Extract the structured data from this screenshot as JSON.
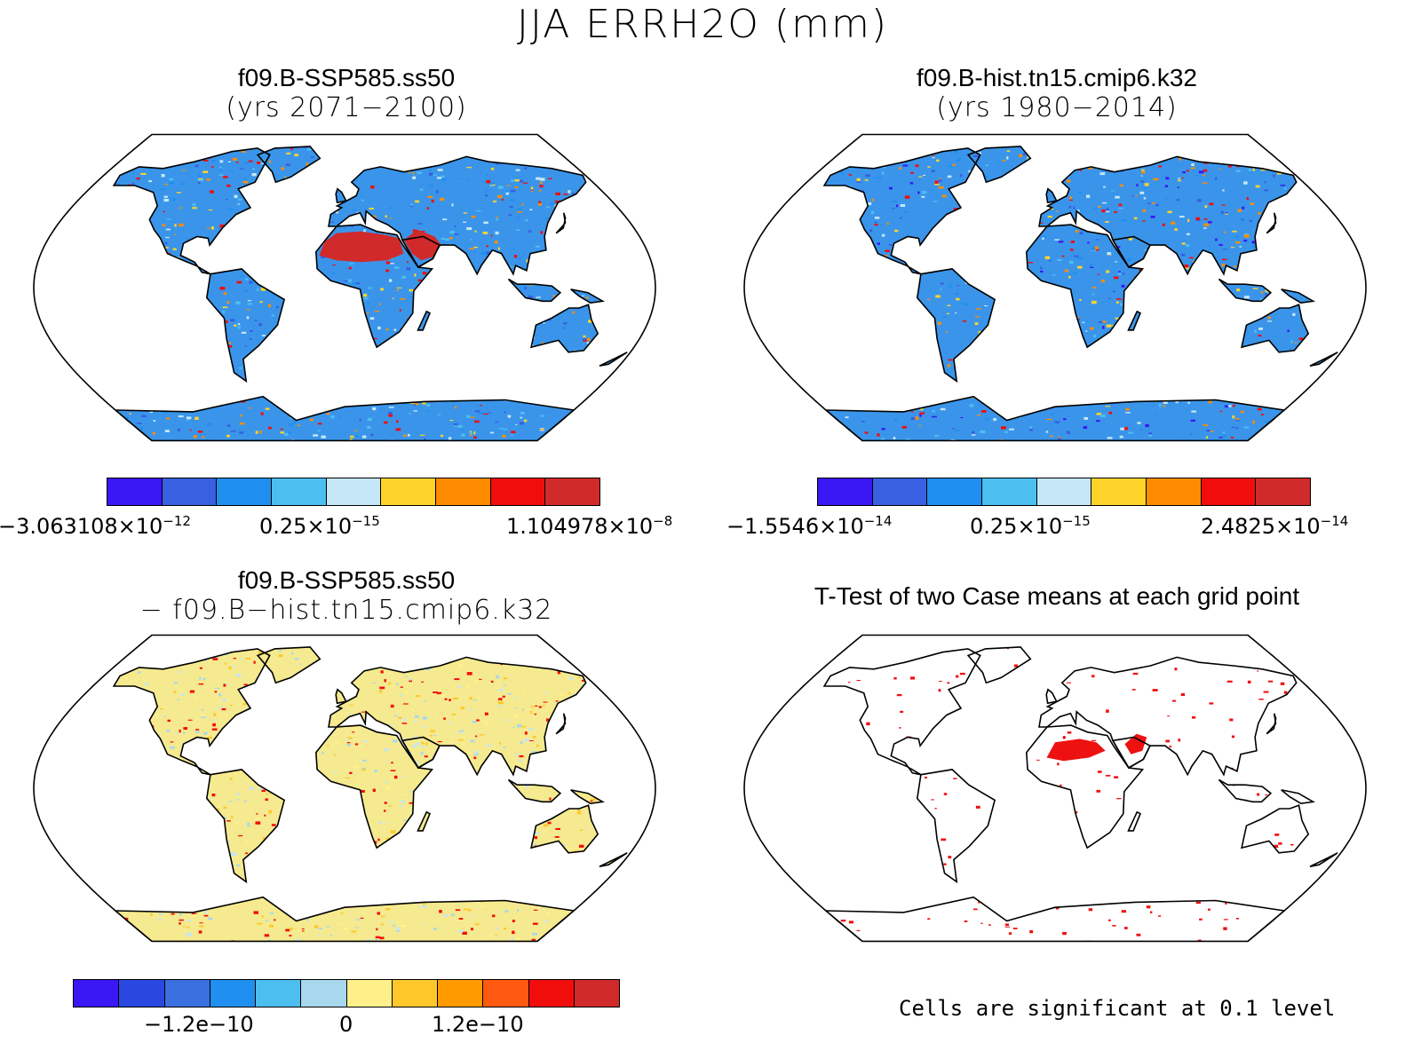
{
  "figure": {
    "title": "JJA ERRH2O (mm)"
  },
  "panels": [
    {
      "id": "top-left",
      "title": "f09.B-SSP585.ss50",
      "subtitle": "(yrs 2071−2100)",
      "colorbar": {
        "colors": [
          "#3a17f5",
          "#3860e0",
          "#1f8ff0",
          "#4cbef0",
          "#c5e6f7",
          "#ffd42a",
          "#ff8c00",
          "#f20d0d",
          "#d12a2a"
        ],
        "labels": [
          {
            "mantissa": "−3.063108×10",
            "exp": "−12"
          },
          {
            "mantissa": "0.25×10",
            "exp": "−15"
          },
          {
            "mantissa": "1.104978×10",
            "exp": "−8"
          }
        ]
      }
    },
    {
      "id": "top-right",
      "title": "f09.B-hist.tn15.cmip6.k32",
      "subtitle": "(yrs 1980−2014)",
      "colorbar": {
        "colors": [
          "#3a17f5",
          "#3860e0",
          "#1f8ff0",
          "#4cbef0",
          "#c5e6f7",
          "#ffd42a",
          "#ff8c00",
          "#f20d0d",
          "#d12a2a"
        ],
        "labels": [
          {
            "mantissa": "−1.5546×10",
            "exp": "−14"
          },
          {
            "mantissa": "0.25×10",
            "exp": "−15"
          },
          {
            "mantissa": "2.4825×10",
            "exp": "−14"
          }
        ]
      }
    },
    {
      "id": "bottom-left",
      "title": "f09.B-SSP585.ss50",
      "subtitle": "− f09.B−hist.tn15.cmip6.k32",
      "colorbar": {
        "colors": [
          "#3a17f5",
          "#2a48e0",
          "#3a70e0",
          "#1f8ff0",
          "#4cbef0",
          "#a8d8ee",
          "#fff08a",
          "#ffc82a",
          "#ff9a00",
          "#ff5a10",
          "#f20d0d",
          "#d12a2a"
        ],
        "labels": [
          "−1.2e−10",
          "0",
          "1.2e−10"
        ]
      }
    },
    {
      "id": "bottom-right",
      "title": "T-Test of two Case means at each grid point",
      "note": "Cells are significant at 0.1 level"
    }
  ],
  "map_style": {
    "ocean": "#ffffff",
    "coast": "#000000",
    "land_top": "#3a95ea",
    "land_diff": "#f5ea8f",
    "land_ttest": "#ffffff",
    "signif": "#ee1111",
    "hot": "#d12a2a"
  }
}
